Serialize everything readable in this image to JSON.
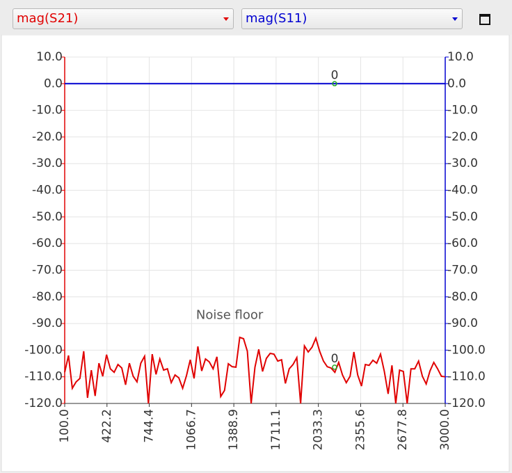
{
  "chart_data": {
    "type": "line",
    "x": [
      100,
      129,
      158,
      187,
      216,
      245,
      274,
      303,
      332,
      361,
      390,
      419,
      448,
      477,
      506,
      535,
      564,
      593,
      622,
      651,
      680,
      709,
      738,
      767,
      796,
      825,
      854,
      883,
      912,
      941,
      970,
      999,
      1028,
      1057,
      1086,
      1115,
      1144,
      1173,
      1202,
      1231,
      1260,
      1289,
      1318,
      1347,
      1376,
      1405,
      1434,
      1463,
      1492,
      1521,
      1550,
      1579,
      1608,
      1637,
      1666,
      1695,
      1724,
      1753,
      1782,
      1811,
      1840,
      1869,
      1898,
      1927,
      1956,
      1985,
      2014,
      2043,
      2072,
      2101,
      2130,
      2159,
      2188,
      2217,
      2246,
      2275,
      2304,
      2333,
      2362,
      2391,
      2420,
      2449,
      2478,
      2507,
      2536,
      2565,
      2594,
      2623,
      2652,
      2681,
      2710,
      2739,
      2768,
      2797,
      2826,
      2855,
      2884,
      2913,
      2942,
      2971,
      3000
    ],
    "series": [
      {
        "name": "mag(S21)",
        "color": "#e00000",
        "values": [
          -108.3,
          -102.0,
          -114.3,
          -111.9,
          -110.6,
          -100.4,
          -117.9,
          -107.5,
          -117.2,
          -104.9,
          -109.8,
          -101.7,
          -107.0,
          -108.3,
          -105.4,
          -106.7,
          -113.0,
          -104.9,
          -109.8,
          -111.9,
          -104.9,
          -102.3,
          -120.0,
          -101.5,
          -109.1,
          -103.3,
          -107.5,
          -107.0,
          -112.2,
          -109.3,
          -110.4,
          -114.3,
          -109.6,
          -103.6,
          -110.6,
          -98.6,
          -107.8,
          -103.3,
          -104.4,
          -107.0,
          -102.5,
          -117.4,
          -115.1,
          -105.1,
          -106.2,
          -106.4,
          -95.2,
          -95.7,
          -100.4,
          -120.0,
          -106.4,
          -99.7,
          -108.0,
          -103.1,
          -101.2,
          -101.5,
          -104.1,
          -103.6,
          -112.5,
          -107.0,
          -105.4,
          -102.8,
          -120.0,
          -98.4,
          -100.7,
          -98.9,
          -95.5,
          -100.4,
          -104.1,
          -106.2,
          -106.7,
          -108.3,
          -104.6,
          -109.3,
          -112.2,
          -109.8,
          -100.7,
          -109.3,
          -113.5,
          -105.4,
          -105.7,
          -103.8,
          -104.9,
          -101.5,
          -108.0,
          -116.4,
          -105.7,
          -120.0,
          -107.5,
          -108.0,
          -120.0,
          -107.0,
          -107.0,
          -104.1,
          -109.8,
          -112.7,
          -107.8,
          -104.6,
          -107.0,
          -109.8,
          -110.0
        ]
      },
      {
        "name": "mag(S11)",
        "color": "#0000d0",
        "axis": "y2",
        "values": [
          0,
          0,
          0,
          0,
          0,
          0,
          0,
          0,
          0,
          0,
          0,
          0,
          0,
          0,
          0,
          0,
          0,
          0,
          0,
          0,
          0,
          0,
          0,
          0,
          0,
          0,
          0,
          0,
          0,
          0,
          0,
          0,
          0,
          0,
          0,
          0,
          0,
          0,
          0,
          0,
          0,
          0,
          0,
          0,
          0,
          0,
          0,
          0,
          0,
          0,
          0,
          0,
          0,
          0,
          0,
          0,
          0,
          0,
          0,
          0,
          0,
          0,
          0,
          0,
          0,
          0,
          0,
          0,
          0,
          0,
          0,
          0,
          0,
          0,
          0,
          0,
          0,
          0,
          0,
          0,
          0,
          0,
          0,
          0,
          0,
          0,
          0,
          0,
          0,
          0,
          0,
          0,
          0,
          0,
          0,
          0,
          0,
          0,
          0,
          0,
          0
        ]
      }
    ],
    "xlim": [
      100,
      3000
    ],
    "xticks": [
      {
        "value": 100,
        "label": "100.0"
      },
      {
        "value": 422.2,
        "label": "422.2"
      },
      {
        "value": 744.4,
        "label": "744.4"
      },
      {
        "value": 1066.7,
        "label": "1066.7"
      },
      {
        "value": 1388.9,
        "label": "1388.9"
      },
      {
        "value": 1711.1,
        "label": "1711.1"
      },
      {
        "value": 2033.3,
        "label": "2033.3"
      },
      {
        "value": 2355.6,
        "label": "2355.6"
      },
      {
        "value": 2677.8,
        "label": "2677.8"
      },
      {
        "value": 3000,
        "label": "3000.0"
      }
    ],
    "ylim": [
      -120,
      10
    ],
    "yticks": [
      {
        "value": 10,
        "label": "10.0"
      },
      {
        "value": 0,
        "label": "0.0"
      },
      {
        "value": -10,
        "label": "-10.0"
      },
      {
        "value": -20,
        "label": "-20.0"
      },
      {
        "value": -30,
        "label": "-30.0"
      },
      {
        "value": -40,
        "label": "-40.0"
      },
      {
        "value": -50,
        "label": "-50.0"
      },
      {
        "value": -60,
        "label": "-60.0"
      },
      {
        "value": -70,
        "label": "-70.0"
      },
      {
        "value": -80,
        "label": "-80.0"
      },
      {
        "value": -90,
        "label": "-90.0"
      },
      {
        "value": -100,
        "label": "-100.0"
      },
      {
        "value": -110,
        "label": "-110.0"
      },
      {
        "value": -120,
        "label": "-120.0"
      }
    ],
    "y2lim": [
      -120,
      10
    ],
    "y2ticks": [
      {
        "value": 10,
        "label": "10.0"
      },
      {
        "value": 0,
        "label": "0.0"
      },
      {
        "value": -10,
        "label": "-10.0"
      },
      {
        "value": -20,
        "label": "-20.0"
      },
      {
        "value": -30,
        "label": "-30.0"
      },
      {
        "value": -40,
        "label": "-40.0"
      },
      {
        "value": -50,
        "label": "-50.0"
      },
      {
        "value": -60,
        "label": "-60.0"
      },
      {
        "value": -70,
        "label": "-70.0"
      },
      {
        "value": -80,
        "label": "-80.0"
      },
      {
        "value": -90,
        "label": "-90.0"
      },
      {
        "value": -100,
        "label": "-100.0"
      },
      {
        "value": -110,
        "label": "-110.0"
      },
      {
        "value": -120,
        "label": "-120.0"
      }
    ],
    "grid": true,
    "markers": [
      {
        "label": "0",
        "x": 2157,
        "y": 0,
        "axis": "y2",
        "color": "#22aa22"
      },
      {
        "label": "0",
        "x": 2157,
        "y": -106.4,
        "color": "#22aa22"
      }
    ],
    "annotations": [
      {
        "text": "Noise floor",
        "x": 1357,
        "y": -87
      }
    ]
  }
}
